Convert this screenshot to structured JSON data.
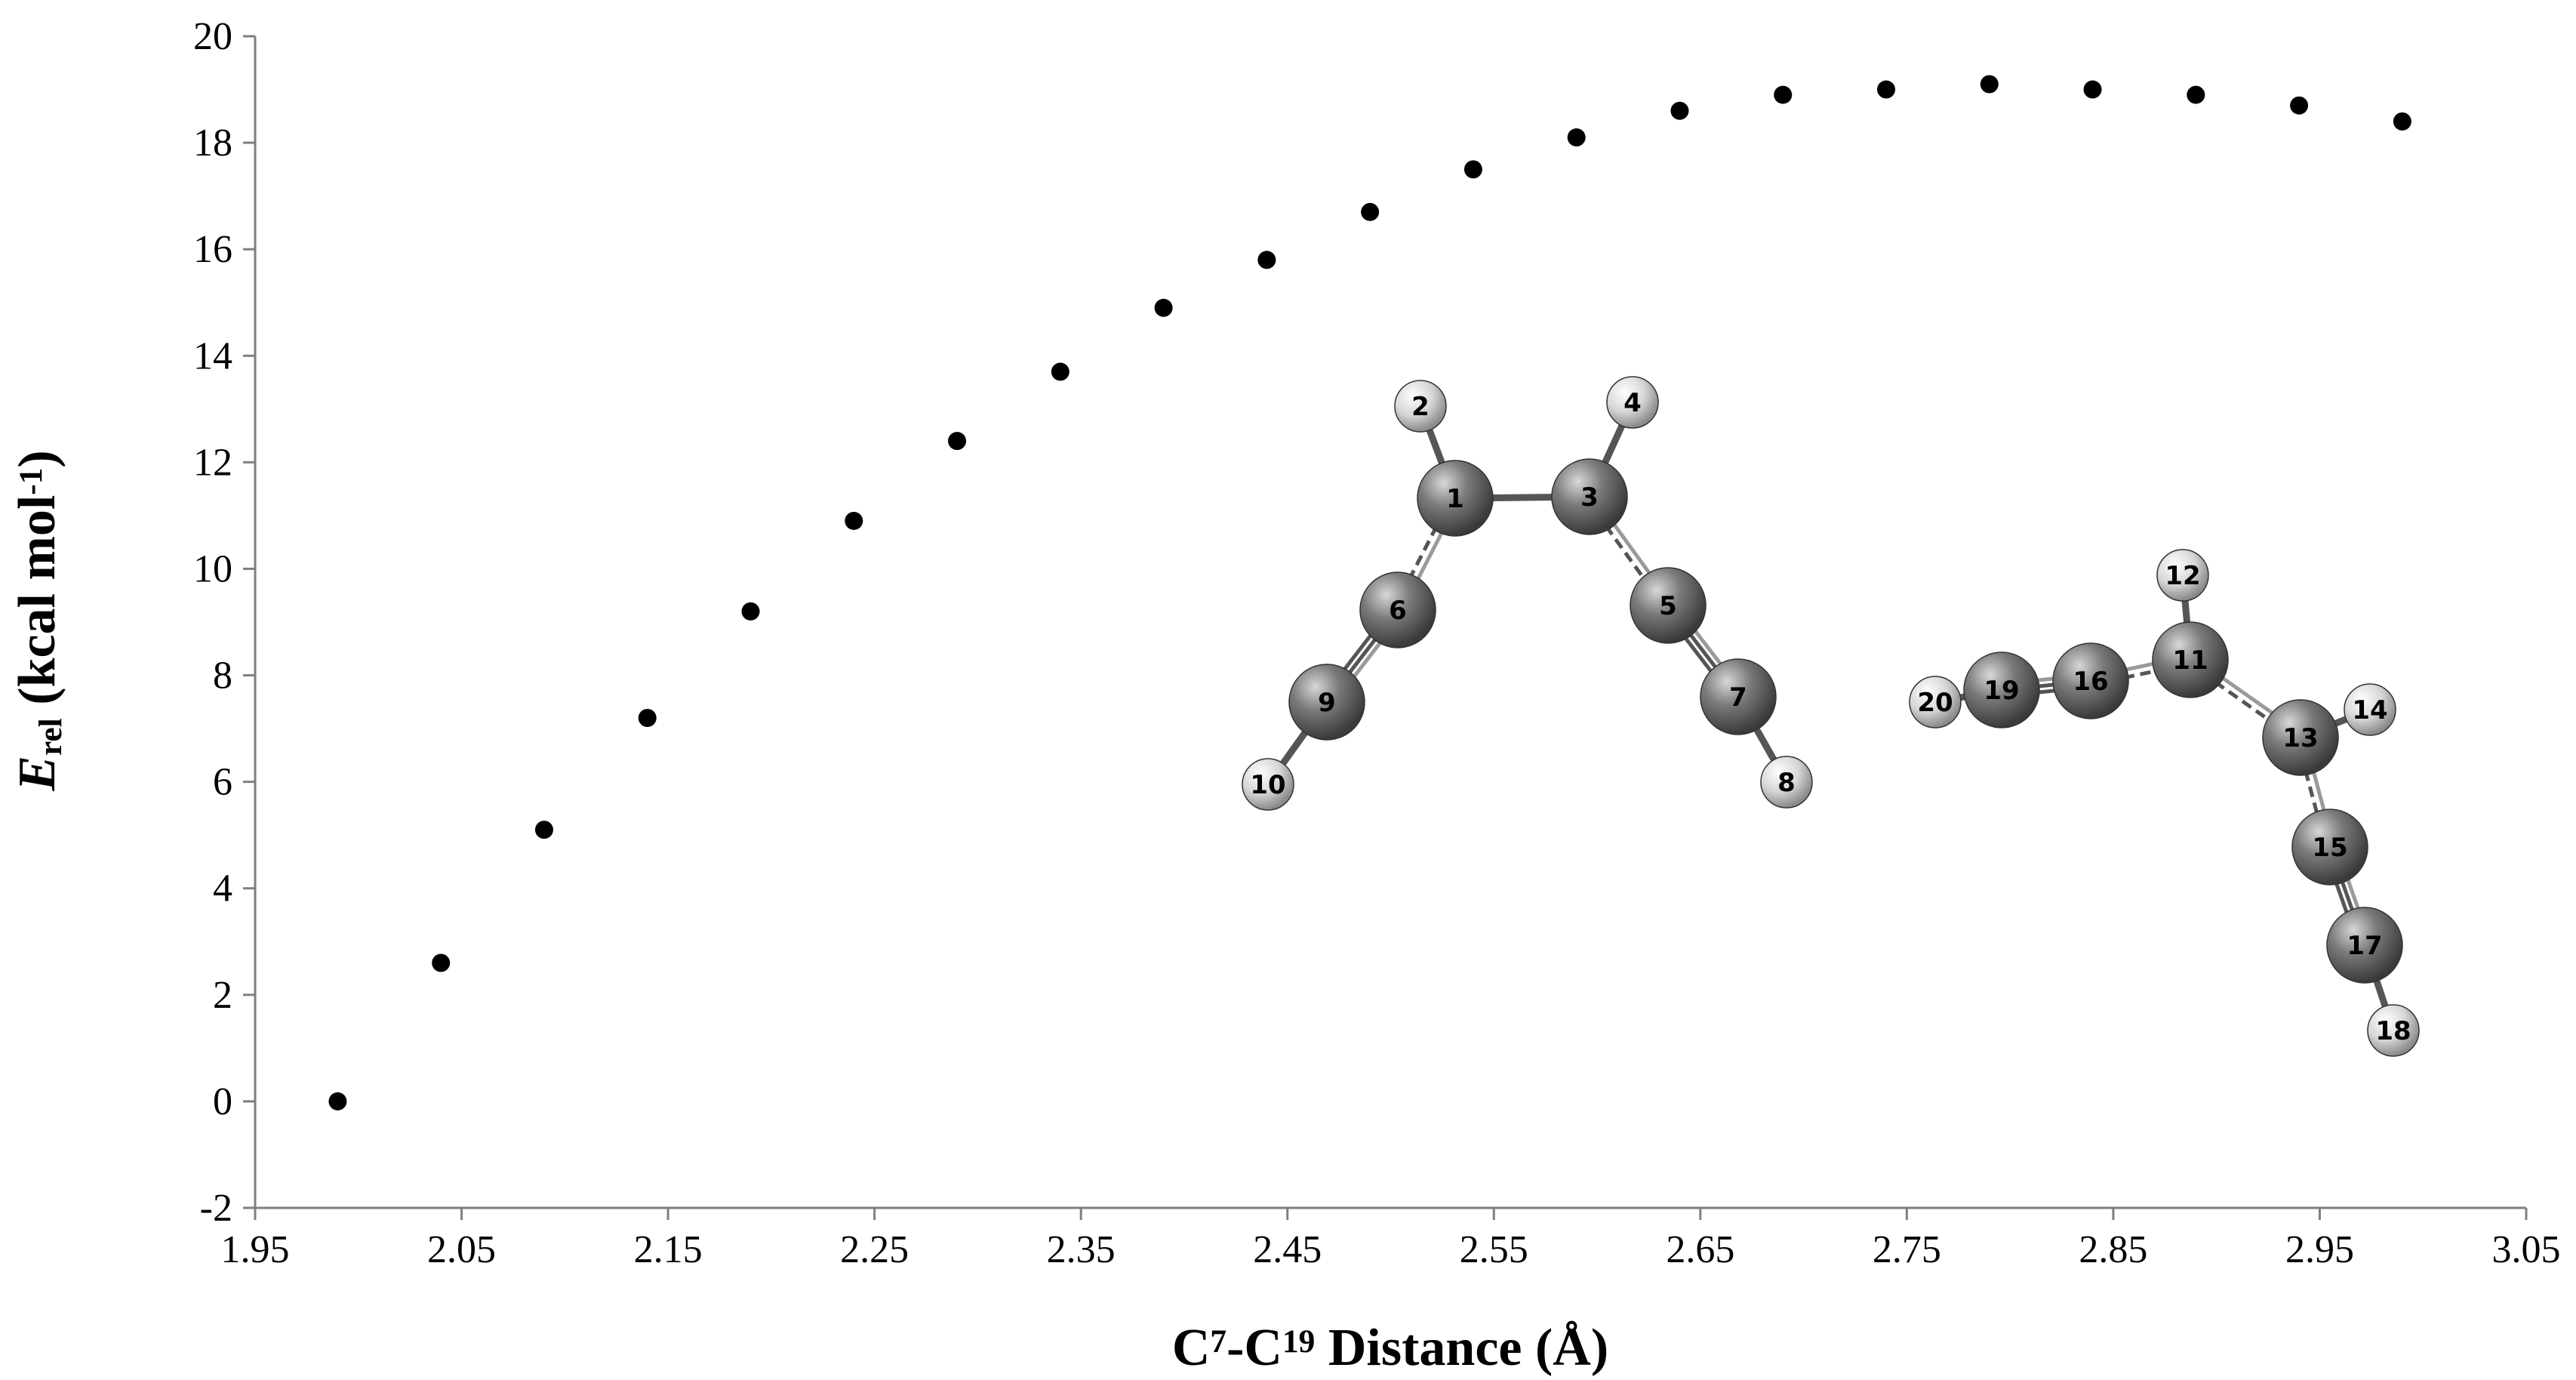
{
  "chart_data": {
    "type": "scatter",
    "title": "",
    "xlabel": {
      "parts": [
        {
          "text": "C",
          "style": "normal"
        },
        {
          "text": "7",
          "style": "sup"
        },
        {
          "text": "-C",
          "style": "normal"
        },
        {
          "text": "19",
          "style": "sup"
        },
        {
          "text": " Distance (Å)",
          "style": "normal"
        }
      ]
    },
    "ylabel": {
      "parts": [
        {
          "text": "E",
          "style": "italic"
        },
        {
          "text": "rel",
          "style": "sub"
        },
        {
          "text": " (kcal mol",
          "style": "normal"
        },
        {
          "text": "-1",
          "style": "sup"
        },
        {
          "text": ")",
          "style": "normal"
        }
      ]
    },
    "xlim": [
      1.95,
      3.05
    ],
    "ylim": [
      -2,
      20
    ],
    "xticks": [
      "1.95",
      "2.05",
      "2.15",
      "2.25",
      "2.35",
      "2.45",
      "2.55",
      "2.65",
      "2.75",
      "2.85",
      "2.95",
      "3.05"
    ],
    "yticks": [
      "-2",
      "0",
      "2",
      "4",
      "6",
      "8",
      "10",
      "12",
      "14",
      "16",
      "18",
      "20"
    ],
    "grid": false,
    "legend": "none",
    "marker_color": "#000000",
    "series": [
      {
        "x": [
          1.99,
          2.04,
          2.09,
          2.14,
          2.19,
          2.24,
          2.29,
          2.34,
          2.39,
          2.44,
          2.49,
          2.54,
          2.59,
          2.64,
          2.69,
          2.74,
          2.79,
          2.84,
          2.89,
          2.94,
          2.99
        ],
        "y": [
          0.0,
          2.6,
          5.1,
          7.2,
          9.2,
          10.9,
          12.4,
          13.7,
          14.9,
          15.8,
          16.7,
          17.5,
          18.1,
          18.6,
          18.9,
          19.0,
          19.1,
          19.0,
          18.9,
          18.7,
          18.4
        ]
      }
    ]
  },
  "inset": {
    "atom_labels": [
      "1",
      "2",
      "3",
      "4",
      "5",
      "6",
      "7",
      "8",
      "9",
      "10",
      "11",
      "12",
      "13",
      "14",
      "15",
      "16",
      "17",
      "18",
      "19",
      "20"
    ]
  }
}
